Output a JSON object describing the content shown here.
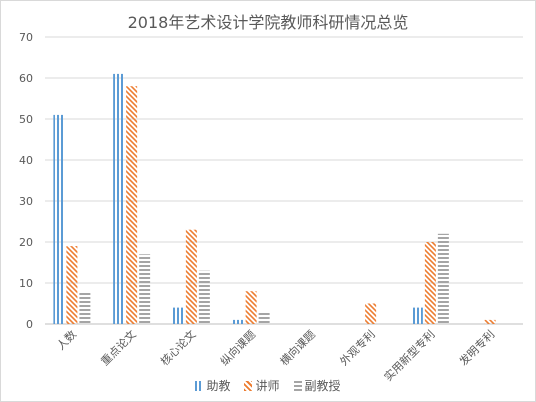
{
  "chart_data": {
    "type": "bar",
    "title": "2018年艺术设计学院教师科研情况总览",
    "categories": [
      "人数",
      "重点论文",
      "核心论文",
      "纵向课题",
      "横向课题",
      "外观专利",
      "实用新型专利",
      "发明专利"
    ],
    "series": [
      {
        "name": "助教",
        "values": [
          51,
          61,
          4,
          1,
          0,
          0,
          4,
          0
        ],
        "color": "#5b9bd5",
        "pattern": "vertical"
      },
      {
        "name": "讲师",
        "values": [
          19,
          58,
          23,
          8,
          0,
          5,
          20,
          1
        ],
        "color": "#ed7d31",
        "pattern": "diagonal"
      },
      {
        "name": "副教授",
        "values": [
          8,
          17,
          13,
          3,
          0,
          0,
          22,
          0
        ],
        "color": "#a5a5a5",
        "pattern": "horizontal"
      }
    ],
    "ylim": [
      0,
      70
    ],
    "yticks": [
      0,
      10,
      20,
      30,
      40,
      50,
      60,
      70
    ],
    "grid": true,
    "legend_position": "bottom",
    "xlabel": "",
    "ylabel": ""
  }
}
